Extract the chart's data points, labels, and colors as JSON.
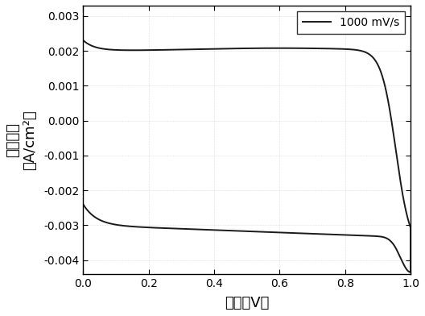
{
  "title": "",
  "xlabel": "电压（V）",
  "ylabel": "电流密度（A/cm²）",
  "ylabel_line1": "电流密度",
  "ylabel_line2": "（A/cm²）",
  "legend_label": "1000 mV/s",
  "xlim": [
    0,
    1.0
  ],
  "ylim": [
    -0.0044,
    0.0033
  ],
  "xticks": [
    0.0,
    0.2,
    0.4,
    0.6,
    0.8,
    1.0
  ],
  "yticks": [
    -0.004,
    -0.003,
    -0.002,
    -0.001,
    0.0,
    0.001,
    0.002,
    0.003
  ],
  "line_color": "#1a1a1a",
  "line_width": 1.4,
  "background_color": "#ffffff",
  "figsize": [
    5.28,
    3.92
  ],
  "dpi": 100
}
